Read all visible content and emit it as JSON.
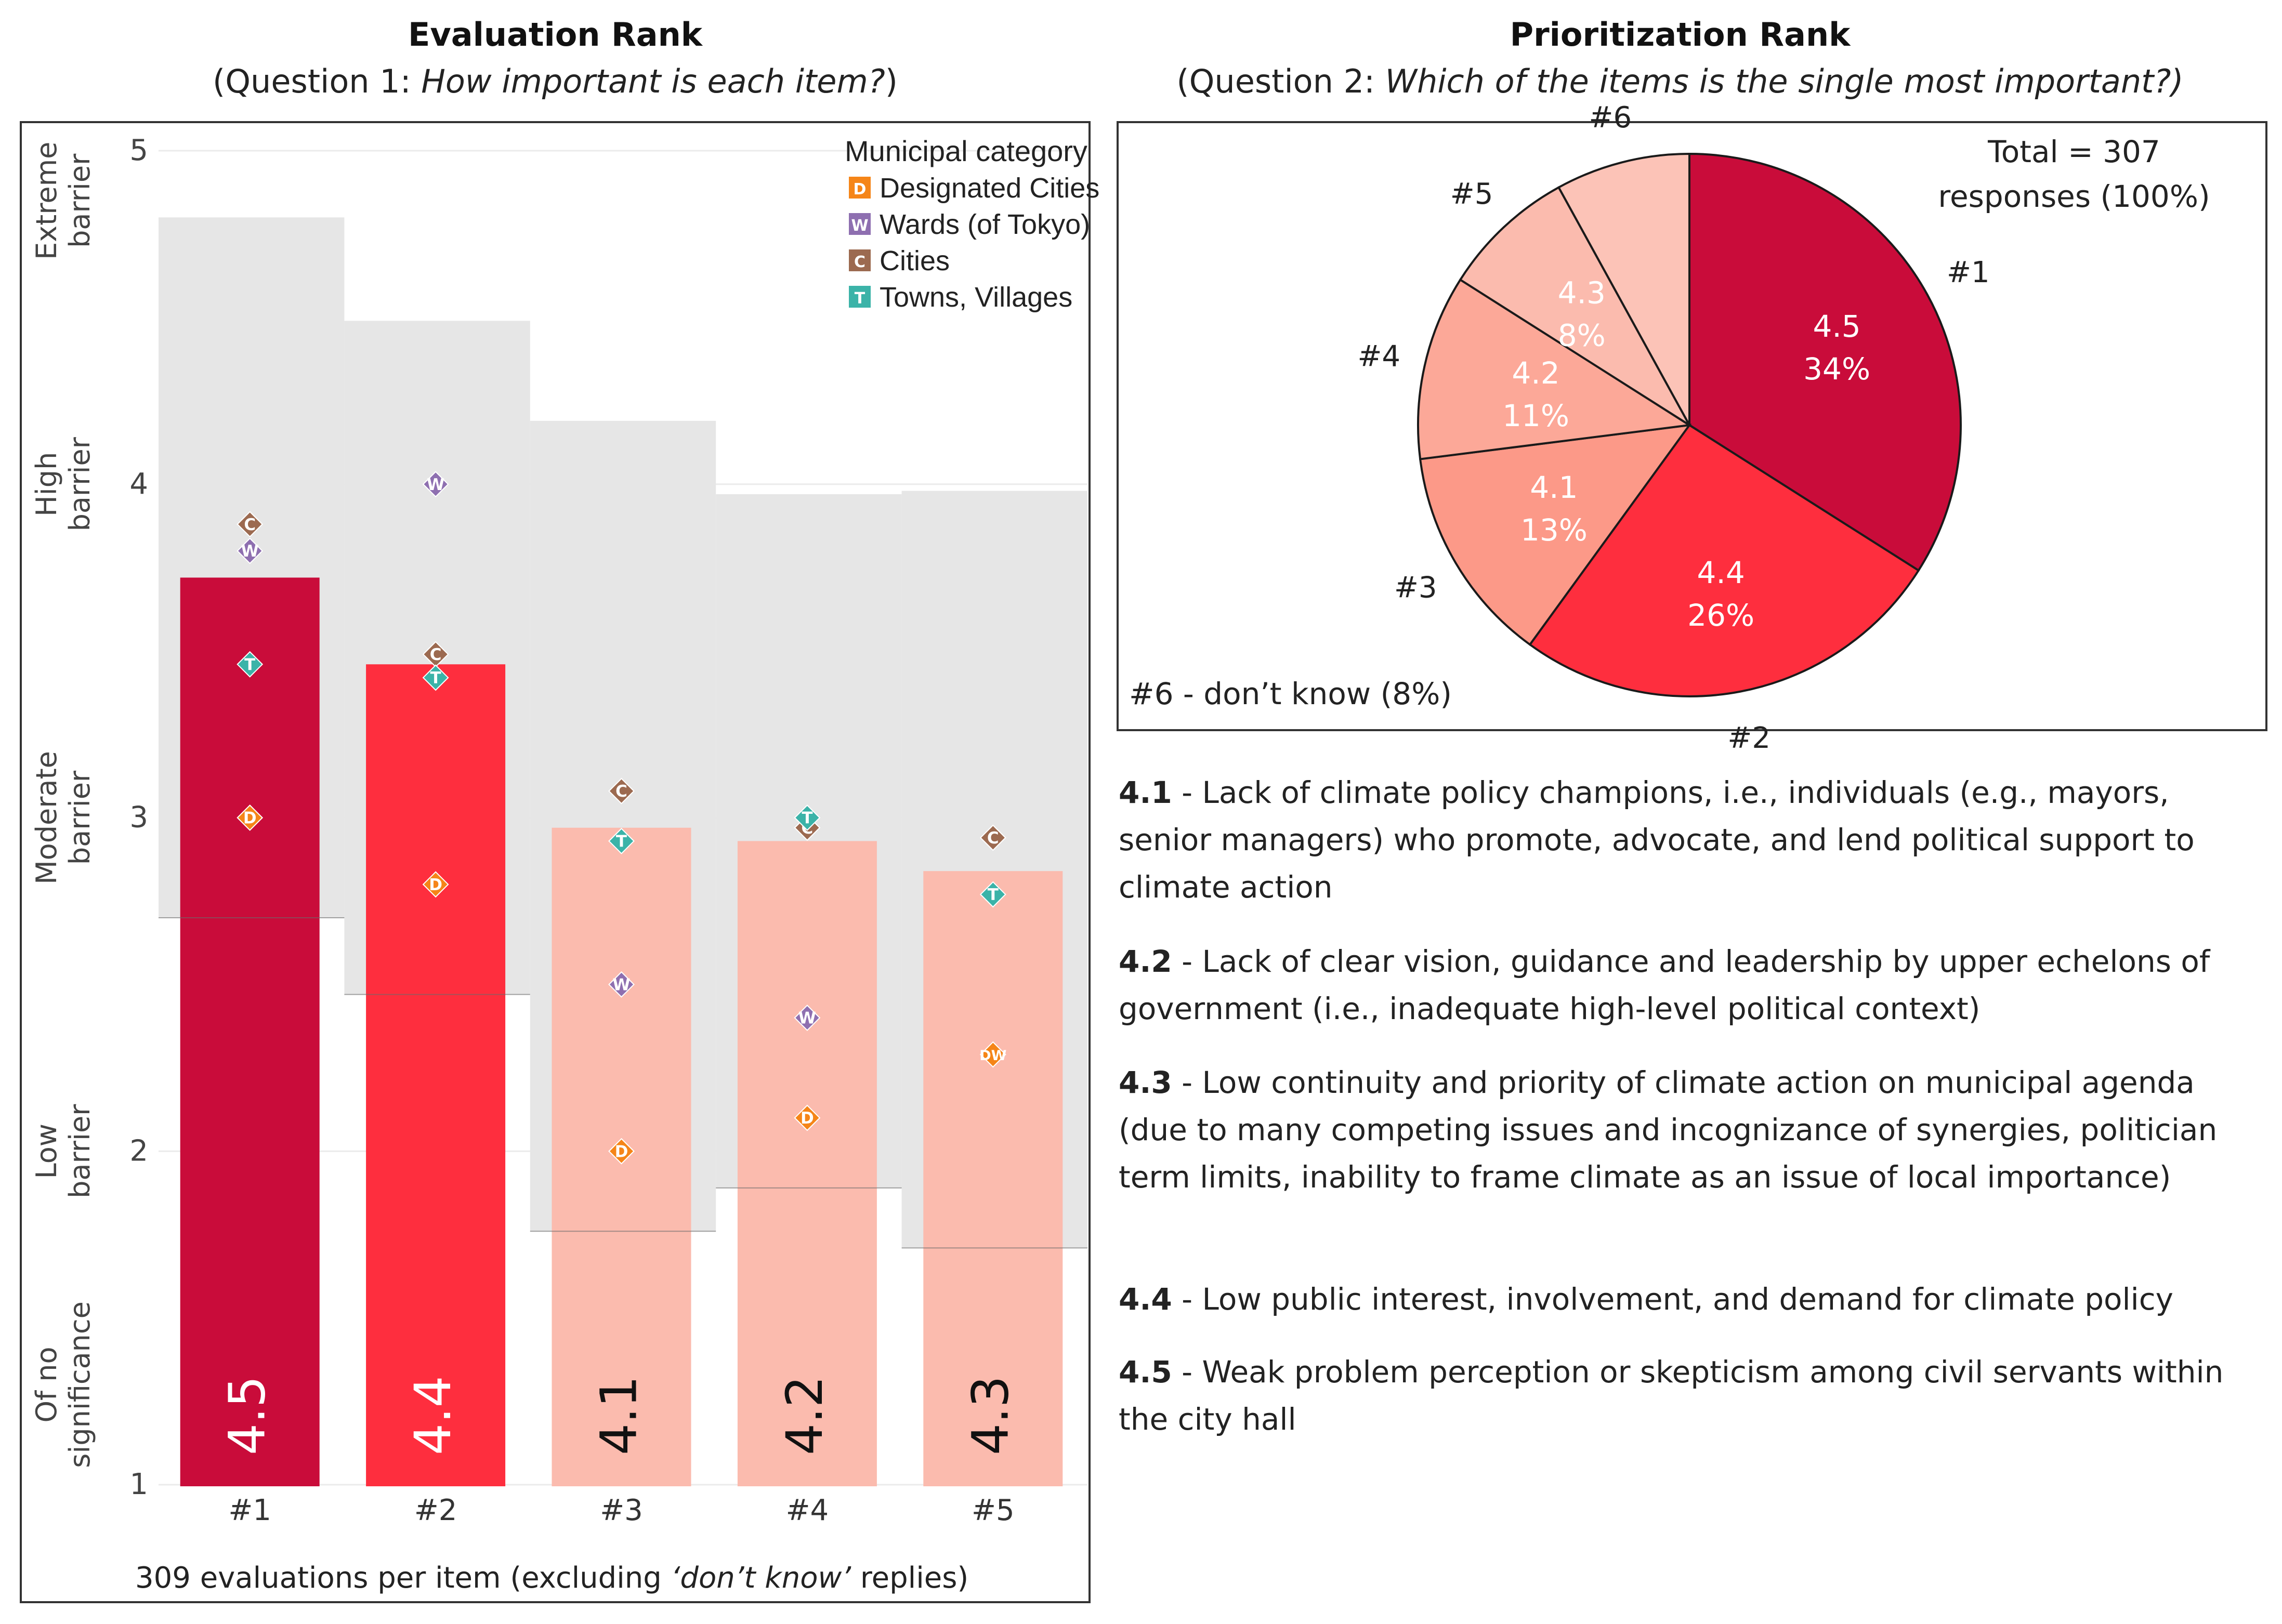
{
  "chart_data": [
    {
      "type": "bar",
      "title": "Evaluation Rank",
      "subtitle_prefix": "(Question 1: ",
      "subtitle_italic": "How important is each item?",
      "subtitle_suffix": ")",
      "categories": [
        "#1",
        "#2",
        "#3",
        "#4",
        "#5"
      ],
      "bar_labels": [
        "4.5",
        "4.4",
        "4.1",
        "4.2",
        "4.3"
      ],
      "values": [
        3.72,
        3.46,
        2.97,
        2.93,
        2.84
      ],
      "bar_colors": [
        "#c90c3a",
        "#fe2e3e",
        "#fbbbae",
        "#fbbbae",
        "#fbbbae"
      ],
      "bar_label_colors": [
        "#ffffff",
        "#ffffff",
        "#111111",
        "#111111",
        "#111111"
      ],
      "range_low": [
        2.7,
        2.47,
        1.76,
        1.89,
        1.71
      ],
      "range_high": [
        4.8,
        4.49,
        4.19,
        3.97,
        3.98
      ],
      "ylim": [
        1,
        5
      ],
      "y_ticks": [
        "1",
        "2",
        "3",
        "4",
        "5"
      ],
      "y_category_labels": [
        {
          "value": 1.3,
          "lines": [
            "Of no",
            "significance"
          ]
        },
        {
          "value": 2.0,
          "lines": [
            "Low",
            "barrier"
          ]
        },
        {
          "value": 3.0,
          "lines": [
            "Moderate",
            "barrier"
          ]
        },
        {
          "value": 4.0,
          "lines": [
            "High",
            "barrier"
          ]
        },
        {
          "value": 4.85,
          "lines": [
            "Extreme",
            "barrier"
          ]
        }
      ],
      "xlabel_prefix": "309 evaluations per item (excluding ",
      "xlabel_italic": "‘don’t know’",
      "xlabel_suffix": " replies)",
      "legend": {
        "title": "Municipal category",
        "items": [
          {
            "code": "D",
            "name": "Designated Cities",
            "color": "#f58518"
          },
          {
            "code": "W",
            "name": "Wards (of Tokyo)",
            "color": "#8e6fb0"
          },
          {
            "code": "C",
            "name": "Cities",
            "color": "#9c6a50"
          },
          {
            "code": "T",
            "name": "Towns, Villages",
            "color": "#3bb3a8"
          }
        ]
      },
      "series": [
        {
          "name": "Cities",
          "code": "C",
          "values": [
            3.88,
            3.49,
            3.08,
            2.97,
            2.94
          ]
        },
        {
          "name": "Wards (of Tokyo)",
          "code": "W",
          "values": [
            3.8,
            4.0,
            2.5,
            2.4,
            2.29
          ]
        },
        {
          "name": "Towns, Villages",
          "code": "T",
          "values": [
            3.46,
            3.42,
            2.93,
            3.0,
            2.77
          ]
        },
        {
          "name": "Designated Cities",
          "code": "D",
          "values": [
            3.0,
            2.8,
            2.0,
            2.1,
            2.29
          ]
        }
      ],
      "overlap_label": {
        "category": "#5",
        "text": "DW"
      }
    },
    {
      "type": "pie",
      "title": "Prioritization Rank",
      "subtitle_prefix": "(Question 2: ",
      "subtitle_italic": "Which of the items is the single most important?)",
      "total_lines": [
        "Total = 307",
        "responses (100%)"
      ],
      "footnote": "#6 - don’t know (8%)",
      "slices": [
        {
          "rank": "#1",
          "item": "4.5",
          "percent": 34,
          "pct_label": "34%",
          "color": "#c90c3a",
          "text_color": "#ffffff"
        },
        {
          "rank": "#2",
          "item": "4.4",
          "percent": 26,
          "pct_label": "26%",
          "color": "#fe2e3e",
          "text_color": "#ffffff"
        },
        {
          "rank": "#3",
          "item": "4.1",
          "percent": 13,
          "pct_label": "13%",
          "color": "#fc9988",
          "text_color": "#ffffff"
        },
        {
          "rank": "#4",
          "item": "4.2",
          "percent": 11,
          "pct_label": "11%",
          "color": "#fca898",
          "text_color": "#ffffff"
        },
        {
          "rank": "#5",
          "item": "4.3",
          "percent": 8,
          "pct_label": "8%",
          "color": "#fbbbae",
          "text_color": "#ffffff"
        },
        {
          "rank": "#6",
          "item": "",
          "percent": 8,
          "pct_label": "",
          "color": "#fcc3b7",
          "text_color": "#ffffff"
        }
      ]
    }
  ],
  "descriptions": [
    {
      "id": "4.1",
      "text": " - Lack of climate policy champions, i.e., individuals (e.g., mayors, senior managers) who promote, advocate, and lend political support to climate action"
    },
    {
      "id": "4.2",
      "text": " - Lack of clear vision, guidance and leadership by upper echelons of government (i.e., inadequate high-level political context)"
    },
    {
      "id": "4.3",
      "text": " - Low continuity and priority of climate action on municipal agenda (due to many competing issues and incognizance of synergies, politician term limits, inability to frame climate as an issue of local importance)"
    },
    {
      "id": "4.4",
      "text": " - Low public interest, involvement, and demand for climate policy"
    },
    {
      "id": "4.5",
      "text": " - Weak problem perception or skepticism among civil servants within the city hall"
    }
  ]
}
